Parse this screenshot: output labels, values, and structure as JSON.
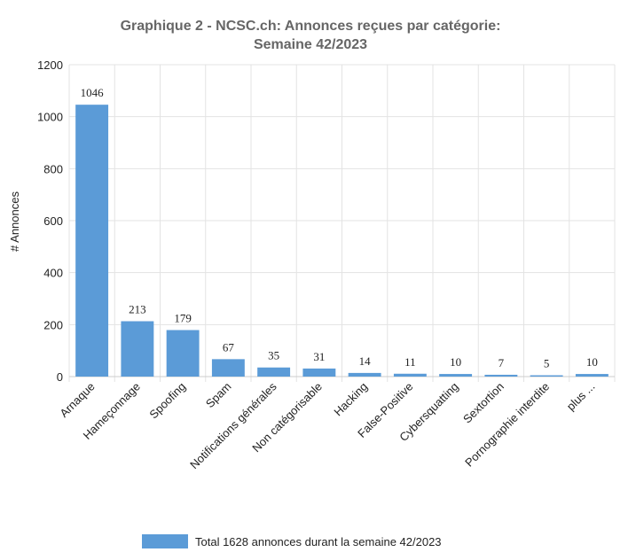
{
  "chart_data": {
    "type": "bar",
    "title": [
      "Graphique 2 - NCSC.ch: Annonces reçues par catégorie:",
      "Semaine 42/2023"
    ],
    "y_label": "# Annonces",
    "categories": [
      "Arnaque",
      "Hameçonnage",
      "Spoofing",
      "Spam",
      "Notifications générales",
      "Non catégorisable",
      "Hacking",
      "False-Positive",
      "Cybersquatting",
      "Sextortion",
      "Pornographie interdite",
      "plus ..."
    ],
    "series": [
      {
        "name": "Total 1628 annonces durant la semaine 42/2023",
        "color": "#5b9bd7",
        "values": [
          1046,
          213,
          179,
          67,
          35,
          31,
          14,
          11,
          10,
          7,
          5,
          10
        ]
      }
    ],
    "ylim": [
      0,
      1200
    ],
    "yticks": [
      0,
      200,
      400,
      600,
      800,
      1000,
      {
        "value": 1200,
        "label": "1200"
      }
    ],
    "grid": true
  }
}
